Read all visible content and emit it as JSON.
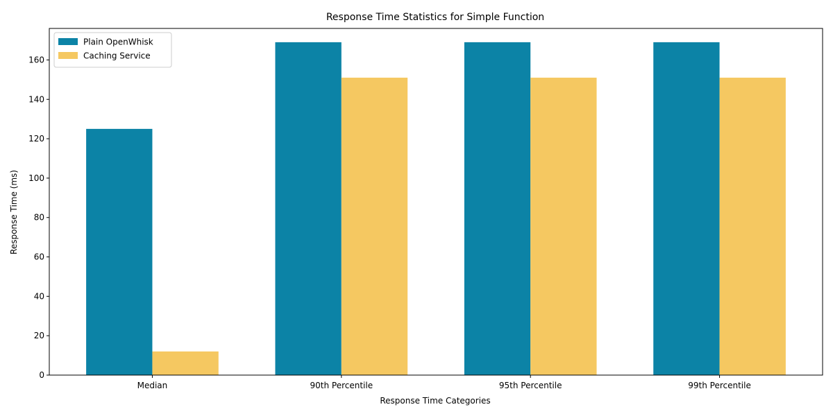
{
  "chart_data": {
    "type": "bar",
    "title": "Response Time Statistics for Simple Function",
    "xlabel": "Response Time Categories",
    "ylabel": "Response Time (ms)",
    "categories": [
      "Median",
      "90th Percentile",
      "95th Percentile",
      "99th Percentile"
    ],
    "series": [
      {
        "name": "Plain OpenWhisk",
        "color": "#0c83a6",
        "values": [
          125,
          169,
          169,
          169
        ]
      },
      {
        "name": "Caching Service",
        "color": "#f5c861",
        "values": [
          12,
          151,
          151,
          151
        ]
      }
    ],
    "ylim": [
      0,
      176
    ],
    "yticks": [
      0,
      20,
      40,
      60,
      80,
      100,
      120,
      140,
      160
    ],
    "grid": false,
    "legend_position": "top-left"
  }
}
